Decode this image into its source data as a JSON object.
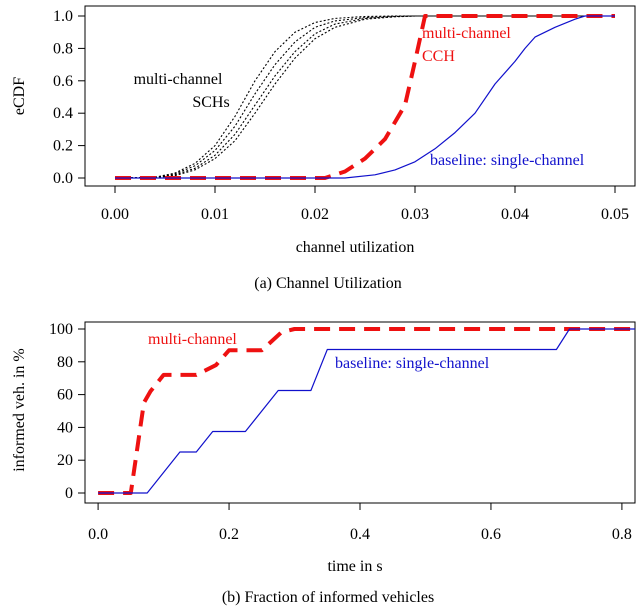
{
  "chart_data": [
    {
      "type": "line",
      "caption": "(a) Channel Utilization",
      "xlabel": "channel utilization",
      "ylabel": "eCDF",
      "xlim": [
        -0.003,
        0.052
      ],
      "ylim": [
        0,
        1.0
      ],
      "xticks": [
        "0.00",
        "0.01",
        "0.02",
        "0.03",
        "0.04",
        "0.05"
      ],
      "xtick_values": [
        0.0,
        0.01,
        0.02,
        0.03,
        0.04,
        0.05
      ],
      "yticks": [
        "0.0",
        "0.2",
        "0.4",
        "0.6",
        "0.8",
        "1.0"
      ],
      "ytick_values": [
        0.0,
        0.2,
        0.4,
        0.6,
        0.8,
        1.0
      ],
      "annotations": {
        "sch_line1": "multi-channel",
        "sch_line2": "SCHs",
        "cch_line1": "multi-channel",
        "cch_line2": "CCH",
        "baseline": "baseline: single-channel"
      },
      "colors": {
        "sch": "#000000",
        "cch": "#ee1111",
        "baseline": "#1111cc"
      },
      "series": [
        {
          "key": "sch1",
          "x": [
            0.0,
            0.004,
            0.006,
            0.008,
            0.01,
            0.012,
            0.014,
            0.016,
            0.018,
            0.02,
            0.022,
            0.025,
            0.028,
            0.05
          ],
          "y": [
            0.0,
            0.005,
            0.03,
            0.09,
            0.2,
            0.38,
            0.6,
            0.78,
            0.9,
            0.96,
            0.985,
            0.997,
            1.0,
            1.0
          ]
        },
        {
          "key": "sch2",
          "x": [
            0.0,
            0.004,
            0.006,
            0.008,
            0.01,
            0.012,
            0.014,
            0.016,
            0.018,
            0.02,
            0.022,
            0.025,
            0.028,
            0.05
          ],
          "y": [
            0.0,
            0.004,
            0.025,
            0.075,
            0.17,
            0.32,
            0.52,
            0.7,
            0.84,
            0.93,
            0.97,
            0.99,
            1.0,
            1.0
          ]
        },
        {
          "key": "sch3",
          "x": [
            0.0,
            0.004,
            0.006,
            0.008,
            0.01,
            0.012,
            0.014,
            0.016,
            0.018,
            0.02,
            0.022,
            0.025,
            0.028,
            0.03,
            0.05
          ],
          "y": [
            0.0,
            0.003,
            0.02,
            0.06,
            0.14,
            0.27,
            0.45,
            0.63,
            0.78,
            0.89,
            0.95,
            0.985,
            0.997,
            1.0,
            1.0
          ]
        },
        {
          "key": "sch4",
          "x": [
            0.0,
            0.004,
            0.006,
            0.008,
            0.01,
            0.012,
            0.014,
            0.016,
            0.018,
            0.02,
            0.022,
            0.025,
            0.028,
            0.03,
            0.05
          ],
          "y": [
            0.0,
            0.002,
            0.015,
            0.05,
            0.12,
            0.23,
            0.4,
            0.58,
            0.74,
            0.86,
            0.93,
            0.98,
            0.995,
            1.0,
            1.0
          ]
        },
        {
          "key": "cch",
          "x": [
            0.0,
            0.021,
            0.023,
            0.025,
            0.027,
            0.029,
            0.03,
            0.031,
            0.05
          ],
          "y": [
            0.0,
            0.0,
            0.04,
            0.12,
            0.24,
            0.45,
            0.72,
            1.0,
            1.0
          ]
        },
        {
          "key": "baseline",
          "x": [
            0.0,
            0.023,
            0.026,
            0.028,
            0.03,
            0.032,
            0.034,
            0.036,
            0.038,
            0.04,
            0.041,
            0.042,
            0.044,
            0.046,
            0.047,
            0.05
          ],
          "y": [
            0.0,
            0.0,
            0.02,
            0.05,
            0.1,
            0.18,
            0.28,
            0.4,
            0.58,
            0.72,
            0.8,
            0.87,
            0.93,
            0.98,
            1.0,
            1.0
          ]
        }
      ]
    },
    {
      "type": "line",
      "caption": "(b) Fraction of informed vehicles",
      "xlabel": "time in s",
      "ylabel": "informed veh. in %",
      "xlim": [
        -0.02,
        0.82
      ],
      "ylim": [
        0,
        100
      ],
      "xticks": [
        "0.0",
        "0.2",
        "0.4",
        "0.6",
        "0.8"
      ],
      "xtick_values": [
        0.0,
        0.2,
        0.4,
        0.6,
        0.8
      ],
      "yticks": [
        "0",
        "20",
        "40",
        "60",
        "80",
        "100"
      ],
      "ytick_values": [
        0,
        20,
        40,
        60,
        80,
        100
      ],
      "annotations": {
        "multi": "multi-channel",
        "baseline": "baseline: single-channel"
      },
      "colors": {
        "multi": "#ee1111",
        "baseline": "#1111cc"
      },
      "series": [
        {
          "key": "multi",
          "x": [
            0.0,
            0.05,
            0.07,
            0.08,
            0.1,
            0.15,
            0.18,
            0.2,
            0.25,
            0.28,
            0.3,
            0.82
          ],
          "y": [
            0,
            0,
            55,
            62,
            72,
            72,
            78,
            87,
            87,
            98,
            100,
            100
          ]
        },
        {
          "key": "baseline",
          "x": [
            0.0,
            0.075,
            0.125,
            0.15,
            0.175,
            0.225,
            0.275,
            0.325,
            0.35,
            0.7,
            0.72,
            0.82
          ],
          "y": [
            0,
            0,
            25,
            25,
            37.5,
            37.5,
            62.5,
            62.5,
            87.5,
            87.5,
            100,
            100
          ]
        }
      ]
    }
  ]
}
